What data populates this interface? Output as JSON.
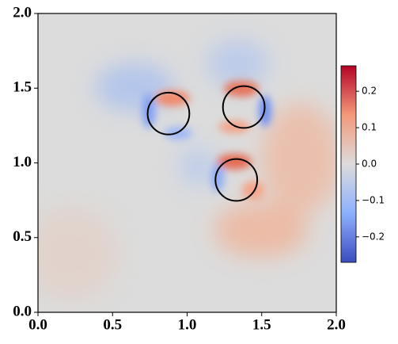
{
  "chart_data": {
    "type": "field",
    "xlim": [
      0,
      2
    ],
    "ylim": [
      0,
      2
    ],
    "xticks": [
      {
        "value": 0,
        "label": "0.0"
      },
      0.5,
      {
        "value": 1,
        "label": "1.0"
      },
      1.5,
      {
        "value": 2,
        "label": "2.0"
      }
    ],
    "yticks": [
      {
        "value": 0,
        "label": "0.0"
      },
      0.5,
      {
        "value": 1,
        "label": "1.0"
      },
      1.5,
      {
        "value": 2,
        "label": "2.0"
      }
    ],
    "circles": [
      {
        "x": 0.875,
        "y": 1.33,
        "r": 0.14
      },
      {
        "x": 1.38,
        "y": 1.374,
        "r": 0.14
      },
      {
        "x": 1.33,
        "y": 0.886,
        "r": 0.14
      }
    ],
    "colorbar": {
      "lim": [
        -0.27,
        0.27
      ],
      "ticks": [
        {
          "value": -0.2,
          "label": "−0.2"
        },
        {
          "value": -0.1,
          "label": "−0.1"
        },
        {
          "value": 0,
          "label": "0.0"
        },
        0.1,
        0.2
      ]
    }
  }
}
